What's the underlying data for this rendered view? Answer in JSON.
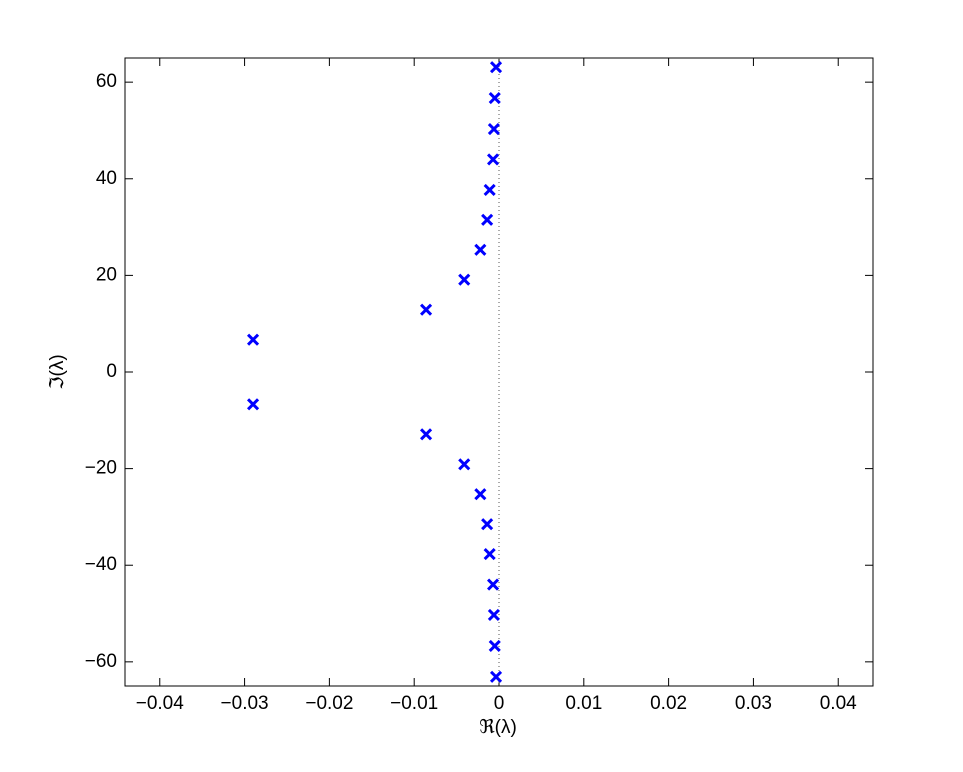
{
  "chart_data": {
    "type": "scatter",
    "marker": "x",
    "color": "#0000ff",
    "x_label": "ℜ(λ)",
    "y_label": "ℑ(λ)",
    "x": [
      -0.00035,
      -0.0005,
      -0.0006,
      -0.0007,
      -0.0011,
      -0.0014,
      -0.0022,
      -0.0041,
      -0.0086,
      -0.029,
      -0.029,
      -0.0086,
      -0.0041,
      -0.0022,
      -0.0014,
      -0.0011,
      -0.0007,
      -0.0006,
      -0.0005,
      -0.00035
    ],
    "values": [
      63.1,
      56.7,
      50.3,
      44.0,
      37.7,
      31.5,
      25.3,
      19.1,
      12.9,
      6.7,
      -6.7,
      -12.9,
      -19.1,
      -25.3,
      -31.5,
      -37.7,
      -44.0,
      -50.3,
      -56.7,
      -63.1
    ],
    "xlim": [
      -0.0441,
      0.0441
    ],
    "ylim": [
      -65,
      65
    ],
    "xticks": [
      {
        "value": -0.04,
        "label": "−0.04"
      },
      {
        "value": -0.03,
        "label": "−0.03"
      },
      {
        "value": -0.02,
        "label": "−0.02"
      },
      {
        "value": -0.01,
        "label": "−0.01"
      },
      0,
      0.01,
      0.02,
      0.03,
      0.04
    ],
    "yticks": [
      {
        "value": -60,
        "label": "−60"
      },
      {
        "value": -40,
        "label": "−40"
      },
      {
        "value": -20,
        "label": "−20"
      },
      0,
      20,
      40,
      60
    ],
    "zero_line": true,
    "grid": false
  }
}
